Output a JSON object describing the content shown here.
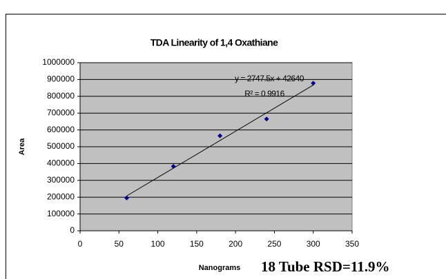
{
  "chart_data": {
    "type": "scatter",
    "title": "TDA Linearity of 1,4 Oxathiane",
    "x_label": "Nanograms",
    "y_label": "Area",
    "x": [
      60,
      120,
      180,
      240,
      300
    ],
    "values": [
      195000,
      383000,
      565000,
      665000,
      878000
    ],
    "color": "#00008b",
    "trendline": {
      "slope": 2747.5,
      "intercept": 42640,
      "label": "y = 2747.5x + 42640",
      "r2_label": "R² = 0.9916"
    },
    "xlim": [
      0,
      350
    ],
    "xticks": [
      0,
      50,
      100,
      150,
      200,
      250,
      300,
      350
    ],
    "ylim": [
      0,
      1000000
    ],
    "yticks": [
      0,
      100000,
      200000,
      300000,
      400000,
      500000,
      600000,
      700000,
      800000,
      900000,
      1000000
    ],
    "grid": true,
    "plot_background": "#c0c0c0",
    "annotation": "18 Tube RSD=11.9%"
  }
}
